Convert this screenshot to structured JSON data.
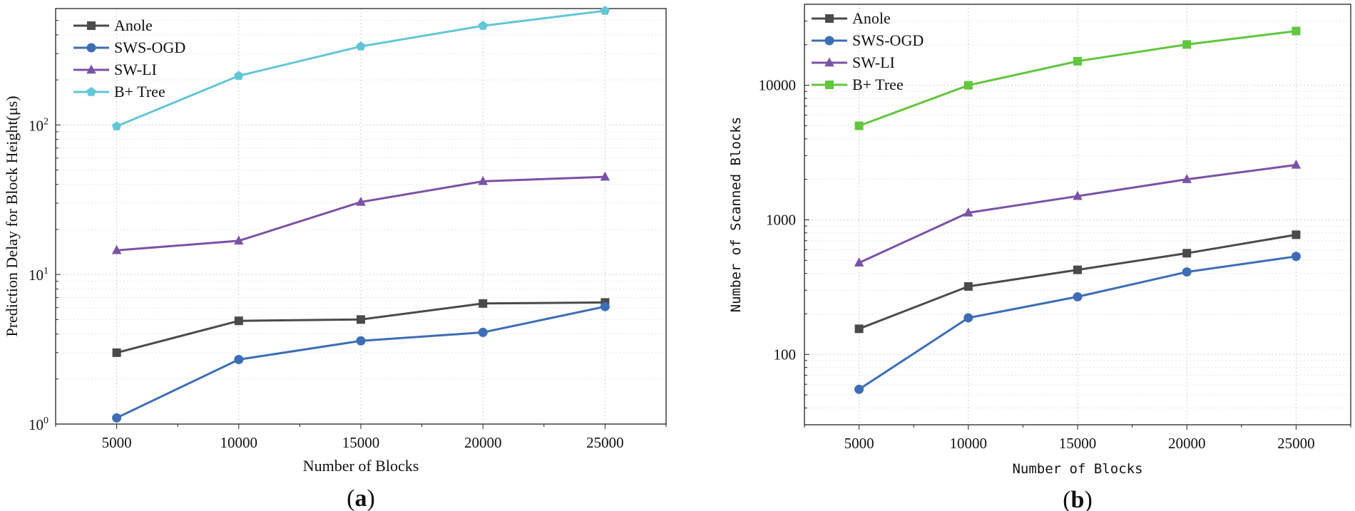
{
  "chart_data": [
    {
      "panel_label": "(a)",
      "panel_letter": "a",
      "type": "line",
      "title": "",
      "xlabel": "Number of Blocks",
      "ylabel": "Prediction Delay for Block Height(μs)",
      "yscale": "log",
      "xlim": [
        2500,
        27500
      ],
      "ylim": [
        1,
        600
      ],
      "x": [
        5000,
        10000,
        15000,
        20000,
        25000
      ],
      "x_ticks": [
        5000,
        10000,
        15000,
        20000,
        25000
      ],
      "x_tick_labels": [
        "5000",
        "10000",
        "15000",
        "20000",
        "25000"
      ],
      "y_ticks": [
        {
          "value": 1,
          "base": "10",
          "exp": "0"
        },
        {
          "value": 10,
          "base": "10",
          "exp": "1"
        },
        {
          "value": 100,
          "base": "10",
          "exp": "2"
        }
      ],
      "grid": true,
      "legend_position": "top-left",
      "series": [
        {
          "name": "Anole",
          "color": "#4a4a4a",
          "marker": "square",
          "values": [
            3.0,
            4.9,
            5.0,
            6.4,
            6.5
          ]
        },
        {
          "name": "SWS-OGD",
          "color": "#3d6db5",
          "marker": "circle",
          "values": [
            1.1,
            2.7,
            3.6,
            4.1,
            6.1
          ]
        },
        {
          "name": "SW-LI",
          "color": "#7b52a6",
          "marker": "triangle",
          "values": [
            14.5,
            16.8,
            30.5,
            42.0,
            45.0
          ]
        },
        {
          "name": "B+ Tree",
          "color": "#62c6d8",
          "marker": "pentagon",
          "values": [
            98,
            213,
            335,
            460,
            580
          ]
        }
      ]
    },
    {
      "panel_label": "(b)",
      "panel_letter": "b",
      "type": "line",
      "title": "",
      "xlabel": "Number of Blocks",
      "ylabel": "Number of Scanned Blocks",
      "yscale": "log",
      "xlim": [
        2500,
        27500
      ],
      "ylim": [
        30,
        40000
      ],
      "x": [
        5000,
        10000,
        15000,
        20000,
        25000
      ],
      "x_ticks": [
        5000,
        10000,
        15000,
        20000,
        25000
      ],
      "x_tick_labels": [
        "5000",
        "10000",
        "15000",
        "20000",
        "25000"
      ],
      "y_ticks": [
        {
          "value": 100,
          "label": "100"
        },
        {
          "value": 1000,
          "label": "1000"
        },
        {
          "value": 10000,
          "label": "10000"
        }
      ],
      "grid": true,
      "legend_position": "top-left",
      "series": [
        {
          "name": "Anole",
          "color": "#4a4a4a",
          "marker": "square",
          "values": [
            155,
            320,
            425,
            565,
            775
          ]
        },
        {
          "name": "SWS-OGD",
          "color": "#3d6db5",
          "marker": "circle",
          "values": [
            55,
            187,
            268,
            410,
            535
          ]
        },
        {
          "name": "SW-LI",
          "color": "#7b52a6",
          "marker": "triangle",
          "values": [
            480,
            1130,
            1500,
            2000,
            2560
          ]
        },
        {
          "name": "B+ Tree",
          "color": "#62c63f",
          "marker": "square",
          "values": [
            5000,
            10000,
            15100,
            20100,
            25300
          ]
        }
      ]
    }
  ]
}
